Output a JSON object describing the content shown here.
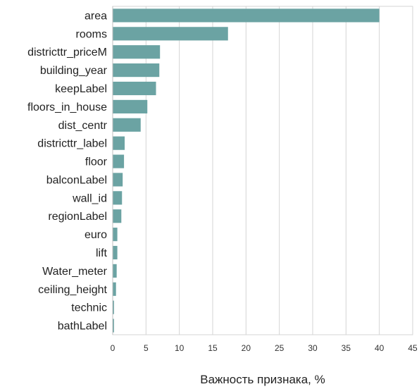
{
  "chart_data": {
    "type": "bar",
    "orientation": "horizontal",
    "categories": [
      "area",
      "rooms",
      "districttr_priceM",
      "building_year",
      "keepLabel",
      "floors_in_house",
      "dist_centr",
      "districttr_label",
      "floor",
      "balconLabel",
      "wall_id",
      "regionLabel",
      "euro",
      "lift",
      "Water_meter",
      "ceiling_height",
      "technic",
      "bathLabel"
    ],
    "values": [
      40.0,
      17.3,
      7.1,
      7.0,
      6.5,
      5.2,
      4.2,
      1.8,
      1.7,
      1.5,
      1.4,
      1.3,
      0.7,
      0.7,
      0.6,
      0.5,
      0.2,
      0.2
    ],
    "title": "",
    "xlabel": "Важность признака, %",
    "ylabel": "",
    "xlim": [
      0,
      45
    ],
    "xticks": [
      "0",
      "5",
      "10",
      "15",
      "20",
      "25",
      "30",
      "35",
      "40",
      "45"
    ],
    "grid": "vertical",
    "bar_color": "#6ba3a3"
  }
}
